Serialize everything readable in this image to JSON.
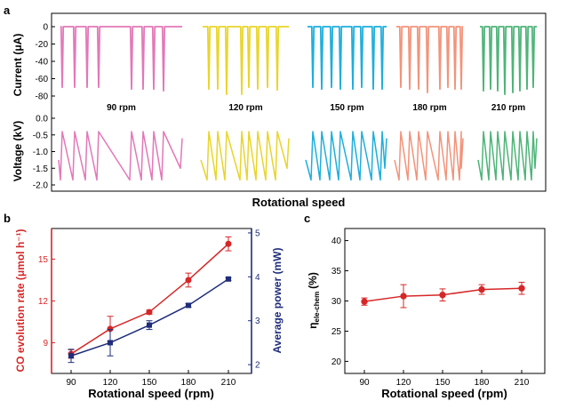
{
  "panel_labels": {
    "a": "a",
    "b": "b",
    "c": "c"
  },
  "colors": {
    "90 rpm": "#e377b8",
    "120 rpm": "#e8d52a",
    "150 rpm": "#1eaedc",
    "180 rpm": "#f3937a",
    "210 rpm": "#4eb478",
    "co_rate": "#d62728",
    "power": "#1f2d7a",
    "eta": "#d62728"
  },
  "chart_data": [
    {
      "panel": "a",
      "type": "line",
      "xlabel": "Rotational speed",
      "current": {
        "ylabel": "Current (μA)",
        "ylim": [
          -80,
          0
        ],
        "yticks": [
          "0",
          "-20",
          "-40",
          "-60",
          "-80"
        ],
        "series": [
          {
            "name": "90 rpm",
            "peaks": [
              -70,
              -70,
              -70,
              -70,
              -72,
              -72,
              -72,
              -74
            ]
          },
          {
            "name": "120 rpm",
            "peaks": [
              -72,
              -72,
              -78,
              -78,
              -70,
              -72,
              -70,
              -73
            ]
          },
          {
            "name": "150 rpm",
            "peaks": [
              -70,
              -72,
              -70,
              -72,
              -72,
              -70,
              -72,
              -72
            ]
          },
          {
            "name": "180 rpm",
            "peaks": [
              -70,
              -72,
              -72,
              -76,
              -72,
              -70,
              -72,
              -72
            ]
          },
          {
            "name": "210 rpm",
            "peaks": [
              -74,
              -72,
              -74,
              -78,
              -76,
              -74,
              -72,
              -70
            ]
          }
        ]
      },
      "voltage": {
        "ylabel": "Voltage (kV)",
        "ylim": [
          -2.0,
          0.0
        ],
        "yticks": [
          "0.0",
          "-0.5",
          "-1.0",
          "-1.5",
          "-2.0"
        ]
      }
    },
    {
      "panel": "b",
      "type": "line",
      "xlabel": "Rotational speed (rpm)",
      "ylabel_left": "CO evolution rate (μmol h⁻¹)",
      "ylabel_right": "Average power (mW)",
      "categories": [
        "90",
        "120",
        "150",
        "180",
        "210"
      ],
      "x": [
        90,
        120,
        150,
        180,
        210
      ],
      "ylim_left": [
        6.8,
        17.2
      ],
      "yticks_left": [
        "9",
        "12",
        "15"
      ],
      "ylim_right": [
        1.8,
        5.1
      ],
      "yticks_right": [
        "2",
        "3",
        "4",
        "5"
      ],
      "series": [
        {
          "axis": "left",
          "marker": "circle",
          "values": [
            8.2,
            10.0,
            11.2,
            13.5,
            16.1
          ],
          "errors": [
            0.3,
            0.9,
            0.15,
            0.5,
            0.5
          ]
        },
        {
          "axis": "right",
          "marker": "square",
          "values": [
            2.2,
            2.5,
            2.9,
            3.35,
            3.95
          ],
          "errors": [
            0.15,
            0.3,
            0.1,
            0.04,
            0.03
          ]
        }
      ]
    },
    {
      "panel": "c",
      "type": "line",
      "xlabel": "Rotational speed (rpm)",
      "ylabel": "η",
      "ylabel_sub": "ele-chem",
      "ylabel_unit": "(%)",
      "categories": [
        "90",
        "120",
        "150",
        "180",
        "210"
      ],
      "x": [
        90,
        120,
        150,
        180,
        210
      ],
      "ylim": [
        18,
        42
      ],
      "yticks": [
        "20",
        "25",
        "30",
        "35",
        "40"
      ],
      "series": [
        {
          "marker": "circle",
          "values": [
            29.9,
            30.8,
            31.0,
            31.9,
            32.1
          ],
          "errors": [
            0.6,
            1.9,
            1.0,
            0.8,
            1.0
          ]
        }
      ]
    }
  ]
}
